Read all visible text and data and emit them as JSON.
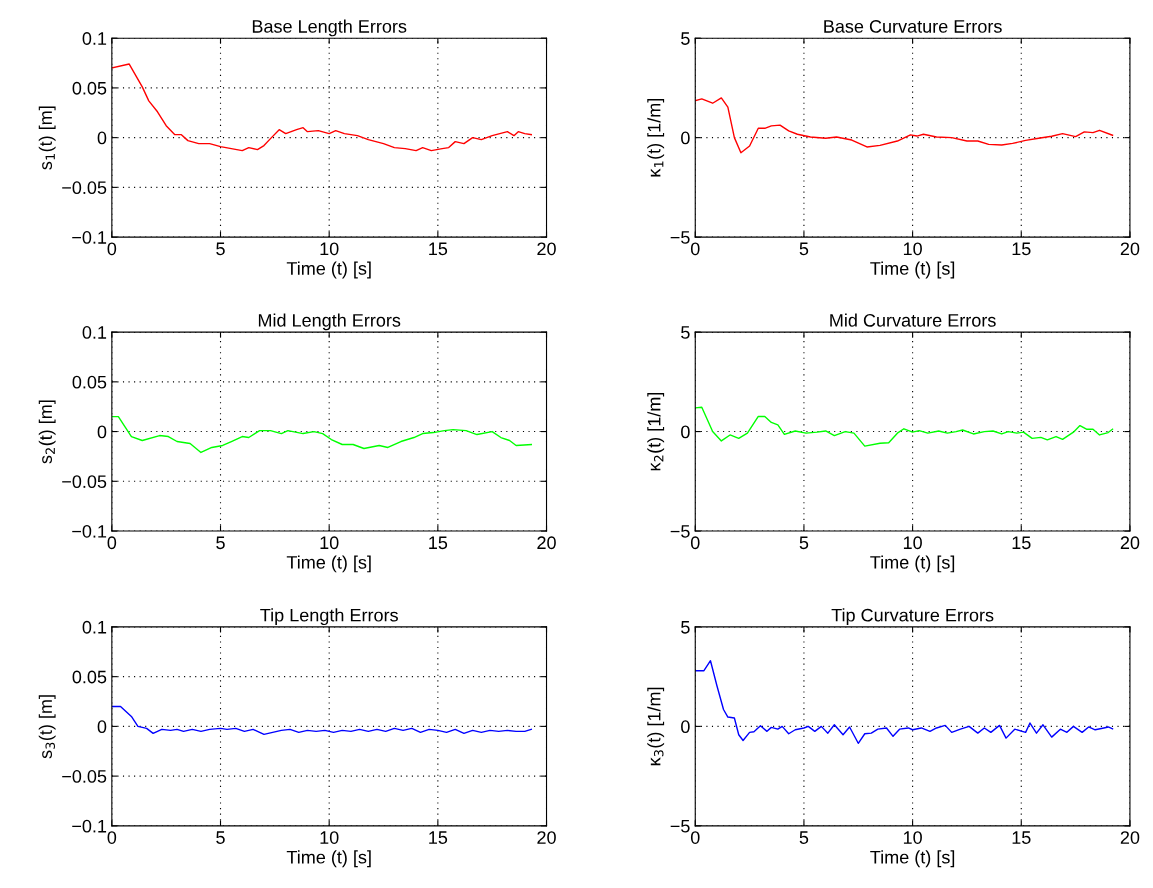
{
  "chart_data": [
    {
      "type": "line",
      "title": "Base Length Errors",
      "xlabel": "Time (t) [s]",
      "ylabel": "s$_{1}$(t) [m]",
      "xlim": [
        0,
        20
      ],
      "ylim": [
        -0.1,
        0.1
      ],
      "xticks": [
        0,
        5,
        10,
        15,
        20
      ],
      "yticks": [
        -0.1,
        -0.05,
        0,
        0.05,
        0.1
      ],
      "grid": true,
      "series": [
        {
          "color": "#ff0000",
          "x": [
            0,
            0.8,
            1.4,
            1.7,
            2.1,
            2.5,
            2.9,
            3.2,
            3.5,
            4,
            4.5,
            5,
            5.5,
            6,
            6.3,
            6.7,
            7,
            7.3,
            7.7,
            8,
            8.5,
            8.8,
            9,
            9.5,
            10,
            10.3,
            10.7,
            11.3,
            11.8,
            12.5,
            13,
            13.5,
            14,
            14.3,
            14.7,
            15.2,
            15.5,
            15.8,
            16.2,
            16.6,
            17,
            17.5,
            18.2,
            18.5,
            18.7,
            19,
            19.3
          ],
          "values": [
            0.07,
            0.074,
            0.051,
            0.037,
            0.026,
            0.012,
            0.003,
            0.003,
            -0.003,
            -0.006,
            -0.006,
            -0.009,
            -0.011,
            -0.013,
            -0.01,
            -0.012,
            -0.008,
            -0.001,
            0.008,
            0.004,
            0.008,
            0.01,
            0.006,
            0.007,
            0.004,
            0.007,
            0.004,
            0.002,
            -0.002,
            -0.006,
            -0.01,
            -0.011,
            -0.013,
            -0.01,
            -0.013,
            -0.011,
            -0.01,
            -0.004,
            -0.006,
            0,
            -0.002,
            0.002,
            0.006,
            0.002,
            0.006,
            0.004,
            0.003
          ]
        }
      ]
    },
    {
      "type": "line",
      "title": "Base Curvature Errors",
      "xlabel": "Time (t) [s]",
      "ylabel": "κ$_{1}$(t) [1/m]",
      "xlim": [
        0,
        20
      ],
      "ylim": [
        -5,
        5
      ],
      "xticks": [
        0,
        5,
        10,
        15,
        20
      ],
      "yticks": [
        -5,
        0,
        5
      ],
      "grid": true,
      "series": [
        {
          "color": "#ff0000",
          "x": [
            0,
            0.3,
            0.8,
            1.2,
            1.5,
            1.8,
            2.1,
            2.5,
            2.9,
            3.2,
            3.5,
            3.9,
            4.3,
            4.7,
            5.3,
            6,
            6.5,
            7.2,
            7.9,
            8.5,
            9.3,
            9.9,
            10.2,
            10.5,
            11.1,
            11.8,
            12.5,
            13,
            13.5,
            14.1,
            14.6,
            15.2,
            15.8,
            16.4,
            16.9,
            17.5,
            17.9,
            18.3,
            18.6,
            19.2
          ],
          "values": [
            1.86,
            1.95,
            1.73,
            2.0,
            1.53,
            0,
            -0.76,
            -0.42,
            0.47,
            0.47,
            0.59,
            0.63,
            0.34,
            0.17,
            0.03,
            -0.03,
            0.03,
            -0.12,
            -0.47,
            -0.39,
            -0.17,
            0.14,
            0.08,
            0.17,
            0.03,
            0,
            -0.17,
            -0.17,
            -0.34,
            -0.37,
            -0.29,
            -0.14,
            -0.03,
            0.07,
            0.2,
            0.05,
            0.29,
            0.25,
            0.37,
            0.12
          ]
        }
      ]
    },
    {
      "type": "line",
      "title": "Mid Length Errors",
      "xlabel": "Time (t) [s]",
      "ylabel": "s$_{2}$(t) [m]",
      "xlim": [
        0,
        20
      ],
      "ylim": [
        -0.1,
        0.1
      ],
      "xticks": [
        0,
        5,
        10,
        15,
        20
      ],
      "yticks": [
        -0.1,
        -0.05,
        0,
        0.05,
        0.1
      ],
      "grid": true,
      "series": [
        {
          "color": "#00ff00",
          "x": [
            0,
            0.3,
            0.9,
            1.4,
            2.2,
            2.6,
            3,
            3.6,
            4.1,
            4.6,
            5.1,
            5.5,
            6,
            6.3,
            6.8,
            7.3,
            7.8,
            8.1,
            8.8,
            9.3,
            9.7,
            10.1,
            10.6,
            11.1,
            11.6,
            12.3,
            12.7,
            13.3,
            13.9,
            14.3,
            14.8,
            15.3,
            15.7,
            16.3,
            16.8,
            17.5,
            17.9,
            18.3,
            18.6,
            19.3
          ],
          "values": [
            0.015,
            0.015,
            -0.005,
            -0.009,
            -0.004,
            -0.005,
            -0.01,
            -0.012,
            -0.021,
            -0.016,
            -0.014,
            -0.01,
            -0.005,
            -0.006,
            0.001,
            0.001,
            -0.002,
            0.001,
            -0.002,
            0,
            -0.002,
            -0.008,
            -0.013,
            -0.013,
            -0.017,
            -0.014,
            -0.016,
            -0.01,
            -0.006,
            -0.002,
            -0.001,
            0.001,
            0.002,
            0.001,
            -0.003,
            0,
            -0.006,
            -0.009,
            -0.014,
            -0.013
          ]
        }
      ]
    },
    {
      "type": "line",
      "title": "Mid Curvature Errors",
      "xlabel": "Time (t) [s]",
      "ylabel": "κ$_{2}$(t) [1/m]",
      "xlim": [
        0,
        20
      ],
      "ylim": [
        -5,
        5
      ],
      "xticks": [
        0,
        5,
        10,
        15,
        20
      ],
      "yticks": [
        -5,
        0,
        5
      ],
      "grid": true,
      "series": [
        {
          "color": "#00ff00",
          "x": [
            0,
            0.3,
            0.8,
            1.2,
            1.6,
            2,
            2.4,
            2.9,
            3.2,
            3.5,
            3.8,
            4.1,
            4.6,
            5.1,
            5.6,
            6,
            6.4,
            6.9,
            7.3,
            7.8,
            8.5,
            8.9,
            9.3,
            9.6,
            10,
            10.3,
            10.7,
            11.2,
            11.6,
            12,
            12.3,
            12.8,
            13.3,
            13.7,
            14.1,
            14.4,
            14.8,
            15.1,
            15.5,
            15.9,
            16.2,
            16.6,
            16.9,
            17.4,
            17.7,
            18,
            18.3,
            18.6,
            19,
            19.2
          ],
          "values": [
            1.19,
            1.22,
            0,
            -0.47,
            -0.17,
            -0.34,
            -0.08,
            0.76,
            0.76,
            0.46,
            0.34,
            -0.14,
            0.03,
            -0.08,
            -0.03,
            0.03,
            -0.2,
            0,
            -0.08,
            -0.73,
            -0.59,
            -0.56,
            -0.08,
            0.14,
            -0.03,
            0.05,
            -0.08,
            0.03,
            -0.08,
            0,
            0.08,
            -0.12,
            0,
            0.03,
            -0.12,
            0,
            -0.08,
            -0.03,
            -0.34,
            -0.29,
            -0.42,
            -0.25,
            -0.39,
            -0.03,
            0.3,
            0.12,
            0.12,
            -0.17,
            -0.05,
            0.12
          ]
        }
      ]
    },
    {
      "type": "line",
      "title": "Tip Length Errors",
      "xlabel": "Time (t) [s]",
      "ylabel": "s$_{3}$(t) [m]",
      "xlim": [
        0,
        20
      ],
      "ylim": [
        -0.1,
        0.1
      ],
      "xticks": [
        0,
        5,
        10,
        15,
        20
      ],
      "yticks": [
        -0.1,
        -0.05,
        0,
        0.05,
        0.1
      ],
      "grid": true,
      "series": [
        {
          "color": "#0000ff",
          "x": [
            0,
            0.4,
            0.9,
            1.2,
            1.6,
            1.9,
            2.3,
            2.7,
            3,
            3.3,
            3.7,
            4.1,
            4.5,
            5,
            5.3,
            5.7,
            6.1,
            6.5,
            7,
            7.4,
            7.8,
            8.2,
            8.6,
            9,
            9.4,
            9.8,
            10.2,
            10.6,
            11,
            11.4,
            11.8,
            12.2,
            12.6,
            13,
            13.4,
            13.8,
            14.2,
            14.6,
            15,
            15.4,
            15.8,
            16.2,
            16.6,
            17,
            17.4,
            17.8,
            18.2,
            18.6,
            19,
            19.3
          ],
          "values": [
            0.02,
            0.02,
            0.01,
            0,
            -0.002,
            -0.007,
            -0.003,
            -0.004,
            -0.003,
            -0.005,
            -0.003,
            -0.005,
            -0.003,
            -0.002,
            -0.003,
            -0.002,
            -0.005,
            -0.003,
            -0.008,
            -0.006,
            -0.004,
            -0.003,
            -0.006,
            -0.004,
            -0.005,
            -0.004,
            -0.006,
            -0.004,
            -0.005,
            -0.003,
            -0.005,
            -0.003,
            -0.005,
            -0.002,
            -0.004,
            -0.002,
            -0.006,
            -0.003,
            -0.004,
            -0.006,
            -0.003,
            -0.007,
            -0.004,
            -0.006,
            -0.004,
            -0.005,
            -0.004,
            -0.005,
            -0.005,
            -0.003
          ]
        }
      ]
    },
    {
      "type": "line",
      "title": "Tip Curvature Errors",
      "xlabel": "Time (t) [s]",
      "ylabel": "κ$_{3}$(t) [1/m]",
      "xlim": [
        0,
        20
      ],
      "ylim": [
        -5,
        5
      ],
      "xticks": [
        0,
        5,
        10,
        15,
        20
      ],
      "yticks": [
        -5,
        0,
        5
      ],
      "grid": true,
      "series": [
        {
          "color": "#0000ff",
          "x": [
            0,
            0.4,
            0.7,
            1,
            1.3,
            1.5,
            1.8,
            2,
            2.2,
            2.5,
            2.7,
            3,
            3.3,
            3.5,
            3.8,
            4,
            4.3,
            4.6,
            5,
            5.2,
            5.5,
            5.8,
            6.1,
            6.4,
            6.8,
            7.1,
            7.5,
            7.8,
            8.1,
            8.4,
            8.8,
            9.1,
            9.4,
            9.8,
            10,
            10.4,
            10.8,
            11.1,
            11.5,
            11.8,
            12.2,
            12.6,
            13,
            13.3,
            13.6,
            14,
            14.3,
            14.7,
            15.2,
            15.4,
            15.7,
            16,
            16.4,
            16.8,
            17.1,
            17.4,
            17.8,
            18.1,
            18.4,
            18.8,
            19,
            19.2
          ],
          "values": [
            2.8,
            2.8,
            3.3,
            2.03,
            0.85,
            0.47,
            0.42,
            -0.42,
            -0.71,
            -0.3,
            -0.27,
            0.03,
            -0.25,
            -0.05,
            -0.14,
            0,
            -0.37,
            -0.17,
            -0.08,
            0,
            -0.25,
            0,
            -0.34,
            0.08,
            -0.42,
            -0.03,
            -0.85,
            -0.37,
            -0.34,
            -0.14,
            -0.08,
            -0.5,
            -0.14,
            -0.08,
            -0.17,
            -0.08,
            -0.25,
            -0.08,
            0.05,
            -0.3,
            -0.14,
            0,
            -0.34,
            -0.08,
            -0.3,
            0.05,
            -0.59,
            -0.14,
            -0.3,
            0.17,
            -0.34,
            0.08,
            -0.54,
            -0.14,
            -0.3,
            0,
            -0.3,
            -0.03,
            -0.17,
            -0.08,
            -0.03,
            -0.12
          ]
        }
      ]
    }
  ]
}
